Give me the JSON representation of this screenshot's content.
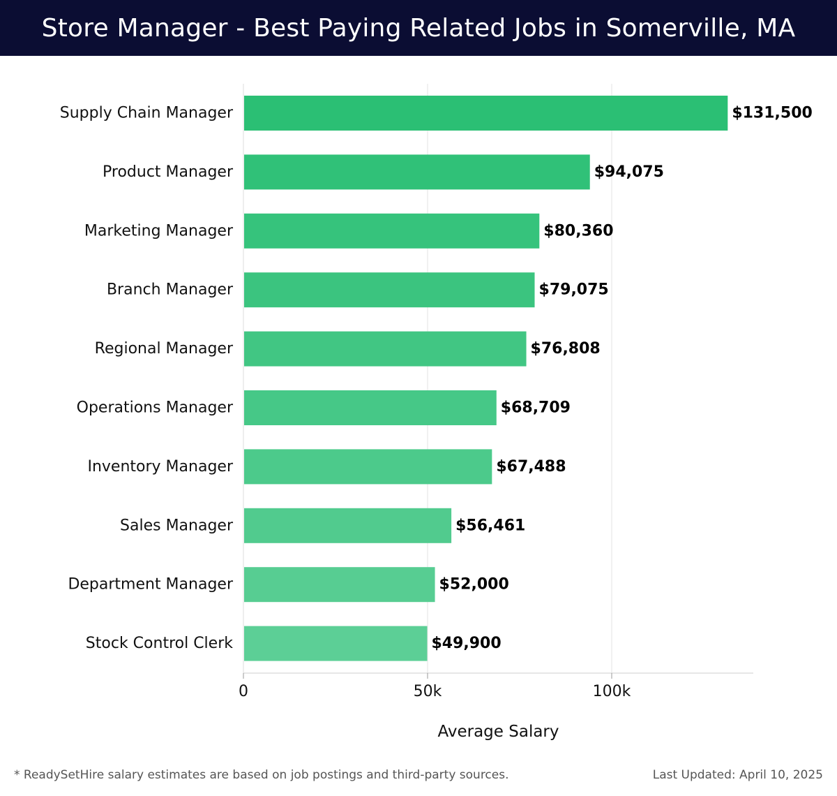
{
  "chart_data": {
    "type": "bar",
    "orientation": "horizontal",
    "title": "Store Manager - Best Paying Related Jobs in Somerville, MA",
    "xlabel": "Average Salary",
    "ylabel": "",
    "categories": [
      "Supply Chain Manager",
      "Product Manager",
      "Marketing Manager",
      "Branch Manager",
      "Regional Manager",
      "Operations Manager",
      "Inventory Manager",
      "Sales Manager",
      "Department Manager",
      "Stock Control Clerk"
    ],
    "values": [
      131500,
      94075,
      80360,
      79075,
      76808,
      68709,
      67488,
      56461,
      52000,
      49900
    ],
    "data_labels": [
      "$131,500",
      "$94,075",
      "$80,360",
      "$79,075",
      "$76,808",
      "$68,709",
      "$67,488",
      "$56,461",
      "$52,000",
      "$49,900"
    ],
    "xticks": [
      0,
      50000,
      100000
    ],
    "xtick_labels": [
      "0",
      "50k",
      "100k"
    ],
    "xlim": [
      0,
      138000
    ],
    "grid": true,
    "colors": {
      "bar_top": "#2bbf74",
      "bar_bottom": "#5ccf96"
    }
  },
  "footer": {
    "note": "* ReadySetHire salary estimates are based on job postings and third-party sources.",
    "updated": "Last Updated: April 10, 2025"
  }
}
